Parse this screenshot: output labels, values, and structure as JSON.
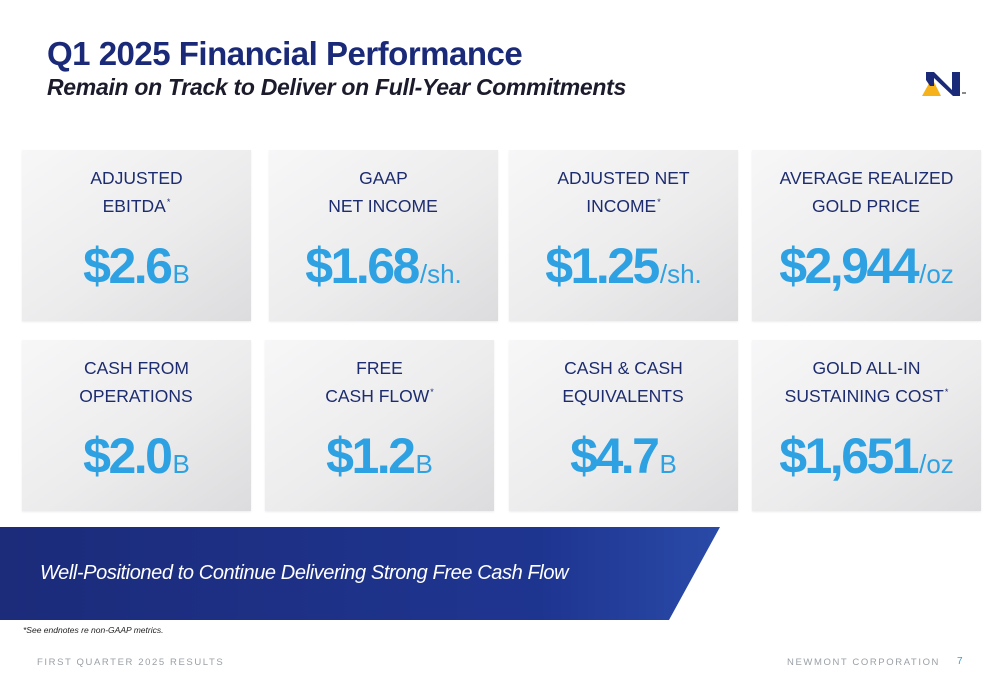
{
  "header": {
    "title": "Q1 2025 Financial Performance",
    "subtitle": "Remain on Track to Deliver on Full-Year Commitments"
  },
  "logo": {
    "icon": "newmont-n-logo-icon",
    "primary_color": "#1a2a78",
    "accent_color": "#f5b21a"
  },
  "colors": {
    "value_blue": "#2ea1e2",
    "label_navy": "#1d2c6e",
    "banner_navy": "#1c2b7a"
  },
  "metrics": [
    {
      "label_line1": "ADJUSTED",
      "label_line2": "EBITDA",
      "asterisk": "*",
      "value": "$2.6",
      "unit": "B"
    },
    {
      "label_line1": "GAAP",
      "label_line2": "NET INCOME",
      "asterisk": "",
      "value": "$1.68",
      "unit": "/sh."
    },
    {
      "label_line1": "ADJUSTED NET",
      "label_line2": "INCOME",
      "asterisk": "*",
      "value": "$1.25",
      "unit": "/sh."
    },
    {
      "label_line1": "AVERAGE REALIZED",
      "label_line2": "GOLD PRICE",
      "asterisk": "",
      "value": "$2,944",
      "unit": "/oz"
    },
    {
      "label_line1": "CASH FROM",
      "label_line2": "OPERATIONS",
      "asterisk": "",
      "value": "$2.0",
      "unit": "B"
    },
    {
      "label_line1": "FREE",
      "label_line2": "CASH FLOW",
      "asterisk": "*",
      "value": "$1.2",
      "unit": "B"
    },
    {
      "label_line1": "CASH & CASH",
      "label_line2": "EQUIVALENTS",
      "asterisk": "",
      "value": "$4.7",
      "unit": "B"
    },
    {
      "label_line1": "GOLD ALL-IN",
      "label_line2": "SUSTAINING COST",
      "asterisk": "*",
      "value": "$1,651",
      "unit": "/oz"
    }
  ],
  "banner": {
    "text": "Well-Positioned to Continue Delivering Strong Free Cash Flow"
  },
  "footnote": "*See endnotes re non-GAAP metrics.",
  "footer": {
    "left": "FIRST QUARTER 2025 RESULTS",
    "right": "NEWMONT CORPORATION",
    "page": "7"
  }
}
